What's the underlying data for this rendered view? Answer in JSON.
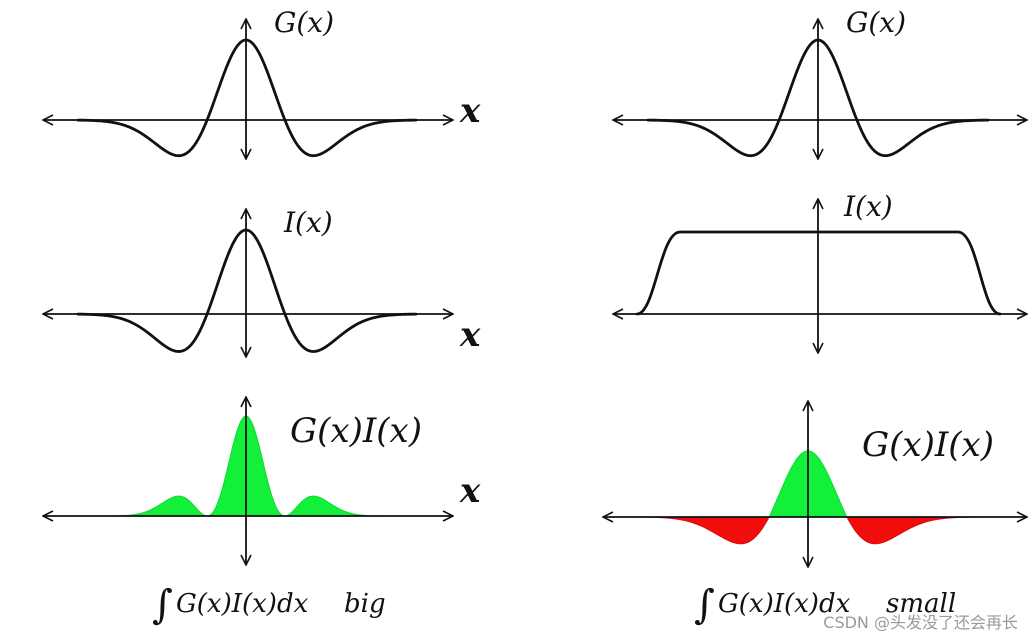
{
  "colors": {
    "positive": "#12f03a",
    "negative": "#f20d0d",
    "line": "#111111"
  },
  "panels": {
    "left": {
      "g_label": "G(x)",
      "i_label": "I(x)",
      "product_label": "G(x)I(x)",
      "x_label": "x",
      "integral_expr": "G(x)I(x)dx",
      "integral_result": "big"
    },
    "right": {
      "g_label": "G(x)",
      "i_label": "I(x)",
      "product_label": "G(x)I(x)",
      "integral_expr": "G(x)I(x)dx",
      "integral_result": "small"
    }
  },
  "integral_symbol": "∫",
  "watermark": "CSDN @头发没了还会再长"
}
